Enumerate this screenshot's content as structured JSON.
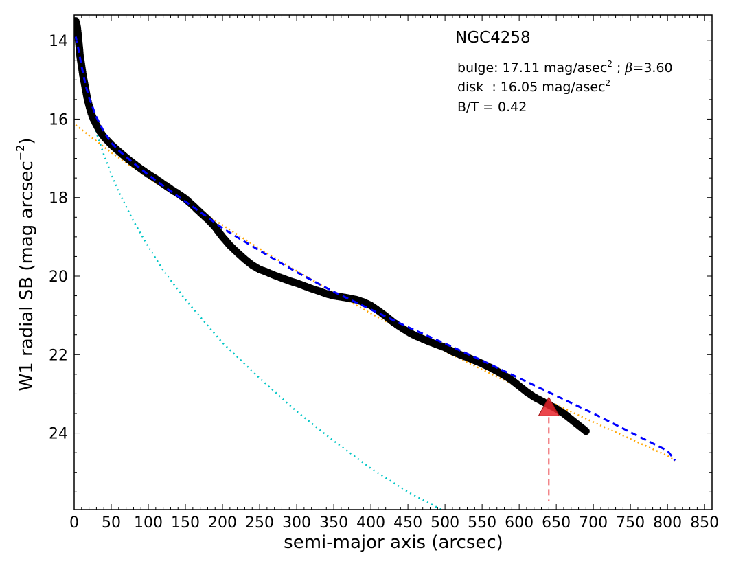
{
  "chart_data": {
    "type": "line",
    "title": "NGC4258",
    "xlabel": "semi-major axis (arcsec)",
    "ylabel": "W1 radial SB (mag arcsec",
    "ylabel_sup": "−2",
    "ylabel_close": ")",
    "xlim": [
      0,
      860
    ],
    "ylim": [
      25.95,
      13.35
    ],
    "y_inverted": true,
    "grid": false,
    "x_ticks": [
      0,
      50,
      100,
      150,
      200,
      250,
      300,
      350,
      400,
      450,
      500,
      550,
      600,
      650,
      700,
      750,
      800,
      850
    ],
    "y_ticks": [
      14,
      16,
      18,
      20,
      22,
      24
    ],
    "annotations": {
      "bulge": {
        "prefix": "bulge: 17.11 mag/asec",
        "sup": "2",
        "mid": " ; ",
        "beta": "β",
        "suffix": "=3.60"
      },
      "disk": {
        "prefix": "disk  : 16.05 mag/asec",
        "sup": "2"
      },
      "bt": "B/T = 0.42"
    },
    "colors": {
      "observed": "#000000",
      "total_model": "#0000ff",
      "bulge": "#00c5c5",
      "disk": "#ffa500",
      "marker": "#e8252b"
    },
    "series": [
      {
        "role": "observed-profile",
        "style": "black-circles",
        "x": [
          2,
          3,
          4,
          5,
          6,
          7,
          8,
          10,
          12,
          14,
          16,
          18,
          20,
          23,
          26,
          30,
          35,
          40,
          45,
          50,
          60,
          70,
          80,
          90,
          100,
          110,
          120,
          130,
          140,
          150,
          160,
          170,
          180,
          190,
          195,
          200,
          210,
          220,
          230,
          240,
          250,
          260,
          270,
          280,
          290,
          300,
          310,
          320,
          330,
          340,
          350,
          360,
          370,
          380,
          390,
          400,
          410,
          420,
          430,
          440,
          450,
          460,
          470,
          480,
          490,
          500,
          510,
          520,
          530,
          540,
          550,
          560,
          570,
          580,
          590,
          600,
          610,
          620,
          630,
          640,
          650,
          660,
          670,
          680,
          690
        ],
        "y": [
          13.5,
          13.55,
          13.65,
          13.8,
          14.0,
          14.2,
          14.4,
          14.65,
          14.9,
          15.1,
          15.3,
          15.5,
          15.65,
          15.85,
          16.0,
          16.15,
          16.32,
          16.45,
          16.55,
          16.65,
          16.82,
          16.98,
          17.13,
          17.27,
          17.4,
          17.52,
          17.65,
          17.78,
          17.9,
          18.03,
          18.2,
          18.38,
          18.55,
          18.75,
          18.88,
          19.0,
          19.22,
          19.4,
          19.57,
          19.72,
          19.83,
          19.9,
          19.98,
          20.05,
          20.12,
          20.18,
          20.25,
          20.32,
          20.38,
          20.45,
          20.5,
          20.53,
          20.56,
          20.6,
          20.66,
          20.75,
          20.88,
          21.02,
          21.17,
          21.3,
          21.42,
          21.52,
          21.6,
          21.68,
          21.75,
          21.82,
          21.92,
          22.0,
          22.07,
          22.15,
          22.23,
          22.32,
          22.42,
          22.53,
          22.65,
          22.8,
          22.95,
          23.08,
          23.18,
          23.28,
          23.38,
          23.5,
          23.65,
          23.8,
          23.95
        ]
      },
      {
        "role": "total-model",
        "style": "blue-dashed",
        "x": [
          2,
          5,
          10,
          15,
          20,
          30,
          40,
          50,
          60,
          80,
          100,
          120,
          150,
          180,
          200,
          250,
          300,
          350,
          400,
          450,
          500,
          550,
          600,
          650,
          700,
          750,
          800,
          810
        ],
        "y": [
          13.9,
          14.15,
          14.65,
          15.1,
          15.45,
          15.95,
          16.32,
          16.6,
          16.8,
          17.12,
          17.42,
          17.7,
          18.1,
          18.5,
          18.78,
          19.35,
          19.9,
          20.4,
          20.85,
          21.3,
          21.72,
          22.15,
          22.6,
          23.05,
          23.5,
          23.98,
          24.45,
          24.7
        ]
      },
      {
        "role": "bulge-component",
        "style": "cyan-dotted",
        "x": [
          2,
          5,
          10,
          15,
          20,
          30,
          40,
          50,
          60,
          80,
          100,
          120,
          150,
          200,
          250,
          300,
          350,
          400,
          450,
          495
        ],
        "y": [
          13.9,
          14.3,
          14.85,
          15.3,
          15.7,
          16.35,
          16.9,
          17.4,
          17.85,
          18.6,
          19.25,
          19.85,
          20.6,
          21.7,
          22.6,
          23.45,
          24.2,
          24.9,
          25.5,
          25.95
        ]
      },
      {
        "role": "disk-component",
        "style": "orange-dotted",
        "x": [
          2,
          50,
          100,
          150,
          200,
          250,
          300,
          350,
          400,
          450,
          500,
          550,
          600,
          650,
          700,
          750,
          800,
          810
        ],
        "y": [
          16.15,
          16.85,
          17.5,
          18.1,
          18.7,
          19.3,
          19.87,
          20.42,
          20.95,
          21.45,
          21.92,
          22.38,
          22.83,
          23.28,
          23.72,
          24.15,
          24.58,
          24.7
        ]
      }
    ],
    "marker": {
      "role": "radius-marker",
      "shape": "triangle",
      "x": 640,
      "y": 23.35
    },
    "marker_drop_line": {
      "style": "red-dashed",
      "x": 640,
      "y_from": 23.35,
      "y_to": 25.95
    }
  }
}
